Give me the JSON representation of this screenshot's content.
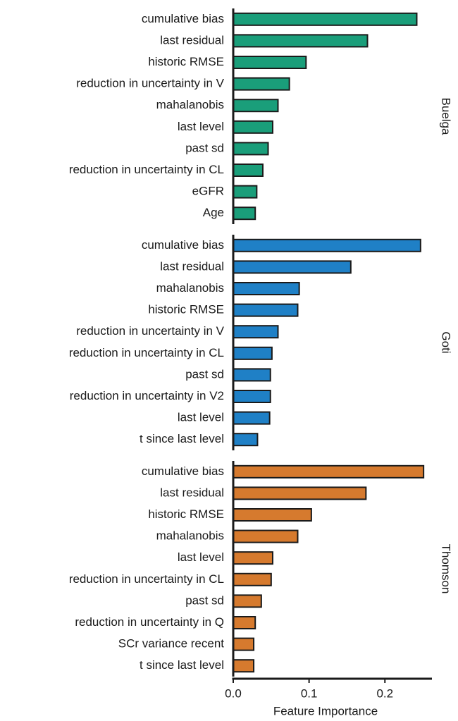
{
  "chart_data": [
    {
      "type": "bar",
      "orientation": "horizontal",
      "title": "Buelga",
      "color": "#1a9e7a",
      "categories": [
        "cumulative bias",
        "last residual",
        "historic RMSE",
        "reduction in uncertainty in V",
        "mahalanobis",
        "last level",
        "past sd",
        "reduction in uncertainty in CL",
        "eGFR",
        "Age"
      ],
      "values": [
        0.242,
        0.177,
        0.096,
        0.074,
        0.059,
        0.052,
        0.046,
        0.039,
        0.031,
        0.029
      ],
      "xlim": [
        0,
        0.262
      ]
    },
    {
      "type": "bar",
      "orientation": "horizontal",
      "title": "Goti",
      "color": "#1f80c6",
      "categories": [
        "cumulative bias",
        "last residual",
        "mahalanobis",
        "historic RMSE",
        "reduction in uncertainty in V",
        "reduction in uncertainty in CL",
        "past sd",
        "reduction in uncertainty in V2",
        "last level",
        "t since last level"
      ],
      "values": [
        0.247,
        0.155,
        0.087,
        0.085,
        0.059,
        0.051,
        0.049,
        0.049,
        0.048,
        0.032
      ],
      "xlim": [
        0,
        0.262
      ]
    },
    {
      "type": "bar",
      "orientation": "horizontal",
      "title": "Thomson",
      "color": "#d67a2e",
      "categories": [
        "cumulative bias",
        "last residual",
        "historic RMSE",
        "mahalanobis",
        "last level",
        "reduction in uncertainty in CL",
        "past sd",
        "reduction in uncertainty in Q",
        "SCr variance recent",
        "t since last level"
      ],
      "values": [
        0.251,
        0.175,
        0.103,
        0.085,
        0.052,
        0.05,
        0.037,
        0.029,
        0.027,
        0.027
      ],
      "xlim": [
        0,
        0.262
      ],
      "xticks": [
        {
          "value": 0,
          "label": "0.0"
        },
        0.1,
        0.2
      ],
      "xlabel": "Feature Importance"
    }
  ]
}
